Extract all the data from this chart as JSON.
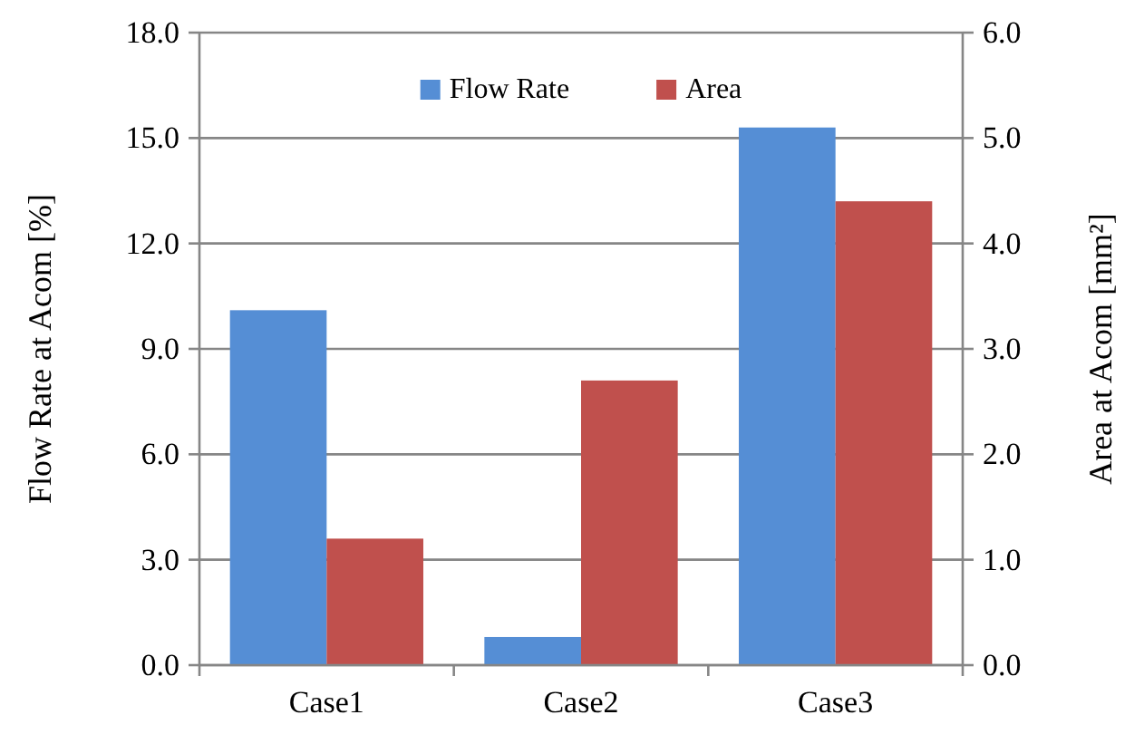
{
  "chart_data": {
    "type": "bar",
    "categories": [
      "Case1",
      "Case2",
      "Case3"
    ],
    "series": [
      {
        "name": "Flow Rate",
        "color": "#558ed5",
        "values": [
          10.1,
          0.8,
          15.3
        ]
      },
      {
        "name": "Area",
        "color": "#c0504d",
        "values": [
          1.2,
          2.7,
          4.4
        ],
        "axis": "y2"
      }
    ],
    "ylabel": "Flow Rate at Acom [%]",
    "y2label": "Area at Acom  [mm²]",
    "ylim": [
      0,
      18
    ],
    "yticks": [
      {
        "value": 0,
        "label": "0.0"
      },
      {
        "value": 3,
        "label": "3.0"
      },
      {
        "value": 6,
        "label": "6.0"
      },
      {
        "value": 9,
        "label": "9.0"
      },
      {
        "value": 12,
        "label": "12.0"
      },
      {
        "value": 15,
        "label": "15.0"
      },
      {
        "value": 18,
        "label": "18.0"
      }
    ],
    "y2lim": [
      0,
      6
    ],
    "y2ticks": [
      {
        "value": 0,
        "label": "0.0"
      },
      {
        "value": 1,
        "label": "1.0"
      },
      {
        "value": 2,
        "label": "2.0"
      },
      {
        "value": 3,
        "label": "3.0"
      },
      {
        "value": 4,
        "label": "4.0"
      },
      {
        "value": 5,
        "label": "5.0"
      },
      {
        "value": 6,
        "label": "6.0"
      }
    ],
    "grid": "y",
    "legend": "top"
  }
}
